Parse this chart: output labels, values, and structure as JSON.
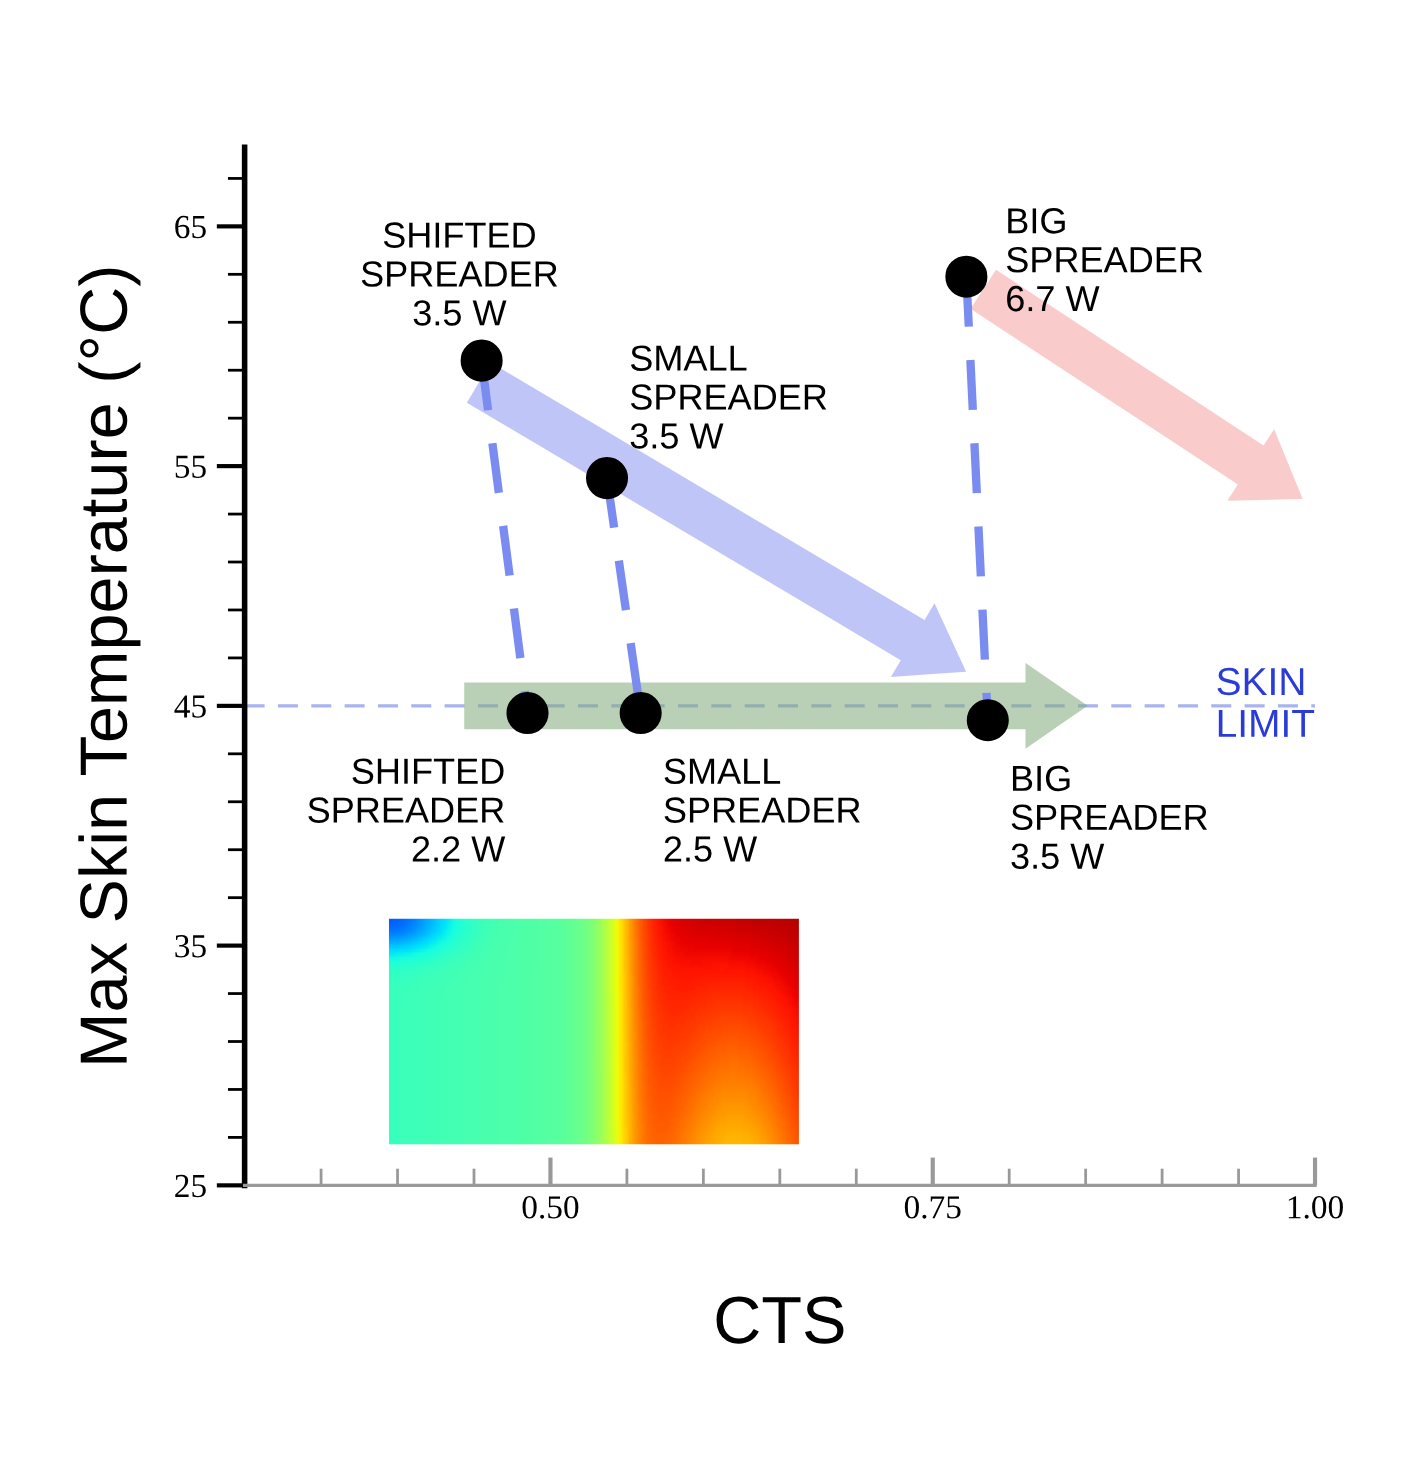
{
  "chart_data": {
    "type": "scatter",
    "xlabel": "CTS",
    "ylabel": "Max Skin Temperature (°C)",
    "xlim": [
      0.3,
      1.0
    ],
    "ylim": [
      25,
      68.3
    ],
    "xticks": [
      {
        "value": 0.35,
        "label": null
      },
      {
        "value": 0.4,
        "label": null
      },
      {
        "value": 0.45,
        "label": null
      },
      {
        "value": 0.5,
        "label": "0.50"
      },
      {
        "value": 0.55,
        "label": null
      },
      {
        "value": 0.6,
        "label": null
      },
      {
        "value": 0.65,
        "label": null
      },
      {
        "value": 0.7,
        "label": null
      },
      {
        "value": 0.75,
        "label": "0.75"
      },
      {
        "value": 0.8,
        "label": null
      },
      {
        "value": 0.85,
        "label": null
      },
      {
        "value": 0.9,
        "label": null
      },
      {
        "value": 0.95,
        "label": null
      },
      {
        "value": 1.0,
        "label": "1.00"
      }
    ],
    "yticks": [
      25,
      {
        "value": 27,
        "label": null
      },
      {
        "value": 29,
        "label": null
      },
      {
        "value": 31,
        "label": null
      },
      {
        "value": 33,
        "label": null
      },
      35,
      {
        "value": 37,
        "label": null
      },
      {
        "value": 39,
        "label": null
      },
      {
        "value": 41,
        "label": null
      },
      {
        "value": 43,
        "label": null
      },
      45,
      {
        "value": 47,
        "label": null
      },
      {
        "value": 49,
        "label": null
      },
      {
        "value": 51,
        "label": null
      },
      {
        "value": 53,
        "label": null
      },
      55,
      {
        "value": 57,
        "label": null
      },
      {
        "value": 59,
        "label": null
      },
      {
        "value": 61,
        "label": null
      },
      {
        "value": 63,
        "label": null
      },
      65,
      {
        "value": 67,
        "label": null
      }
    ],
    "grid": false,
    "series": [
      {
        "type": "line",
        "color": "#7b8cf0",
        "line_style": "dashed",
        "x": [
          0.455,
          0.485
        ],
        "values": [
          59.4,
          44.7
        ]
      },
      {
        "type": "line",
        "color": "#7b8cf0",
        "line_style": "dashed",
        "x": [
          0.537,
          0.559
        ],
        "values": [
          54.5,
          44.7
        ]
      },
      {
        "type": "line",
        "color": "#7b8cf0",
        "line_style": "dashed",
        "x": [
          0.772,
          0.786
        ],
        "values": [
          62.9,
          44.4
        ]
      },
      {
        "marker": "circle",
        "color": "#000000",
        "x": [
          0.455,
          0.537,
          0.772,
          0.485,
          0.559,
          0.786
        ],
        "values": [
          59.4,
          54.5,
          62.9,
          44.7,
          44.7,
          44.4
        ]
      }
    ],
    "ref_lines": [
      {
        "axis": "y",
        "value": 45,
        "label": "SKIN\nLIMIT",
        "color": "#a8b4f0",
        "line_style": "dashed"
      }
    ],
    "annotations": [
      {
        "text": "SHIFTED\nSPREADER\n3.5 W",
        "x": 0.455,
        "y": 59.4
      },
      {
        "text": "SMALL\nSPREADER\n3.5 W",
        "x": 0.537,
        "y": 54.5
      },
      {
        "text": "BIG\nSPREADER\n6.7 W",
        "x": 0.772,
        "y": 62.9
      },
      {
        "text": "SHIFTED\nSPREADER\n2.2 W",
        "x": 0.485,
        "y": 44.7
      },
      {
        "text": "SMALL\nSPREADER\n2.5 W",
        "x": 0.559,
        "y": 44.7
      },
      {
        "text": "BIG\nSPREADER\n3.5 W",
        "x": 0.786,
        "y": 44.4
      }
    ]
  }
}
